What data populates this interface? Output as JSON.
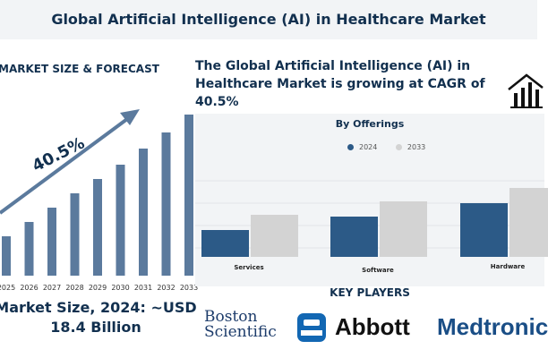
{
  "header": {
    "title": "Global Artificial Intelligence (AI) in Healthcare Market"
  },
  "left_panel": {
    "heading": "MARKET SIZE & FORECAST",
    "cagr_label": "40.5%",
    "market_size_line1": "Market Size, 2024: ~USD",
    "market_size_line2": "18.4 Billion"
  },
  "cagr_statement": "The Global Artificial Intelligence (AI) in Healthcare Market is growing at CAGR of 40.5%",
  "offerings": {
    "title": "By Offerings"
  },
  "key_players": {
    "title": "KEY PLAYERS",
    "logos": [
      "Boston Scientific",
      "Abbott",
      "Medtronic"
    ],
    "boston_line1": "Boston",
    "boston_line2": "Scientific",
    "abbott": "Abbott",
    "medtronic": "Medtronic"
  },
  "icons": {
    "house": "house-chart-icon",
    "abbott_mark": "abbott-mark-icon"
  },
  "colors": {
    "navy": "#12304f",
    "bar_blue": "#5b7a9d",
    "series_2024": "#2c5a87",
    "series_2033": "#d3d3d3"
  },
  "chart_data": [
    {
      "type": "bar",
      "title": "MARKET SIZE & FORECAST",
      "categories": [
        "2025",
        "2026",
        "2027",
        "2028",
        "2029",
        "2030",
        "2031",
        "2032",
        "2033"
      ],
      "values": [
        22,
        30,
        38,
        46,
        54,
        62,
        71,
        80,
        90
      ],
      "annotation": "40.5%",
      "ylim": [
        0,
        100
      ],
      "grid": false
    },
    {
      "type": "bar",
      "title": "By Offerings",
      "categories": [
        "Services",
        "Software",
        "Hardware"
      ],
      "series": [
        {
          "name": "2024",
          "values": [
            30,
            45,
            60
          ]
        },
        {
          "name": "2033",
          "values": [
            47,
            62,
            77
          ]
        }
      ],
      "ylim": [
        0,
        100
      ],
      "grid": true,
      "legend": "top"
    }
  ]
}
